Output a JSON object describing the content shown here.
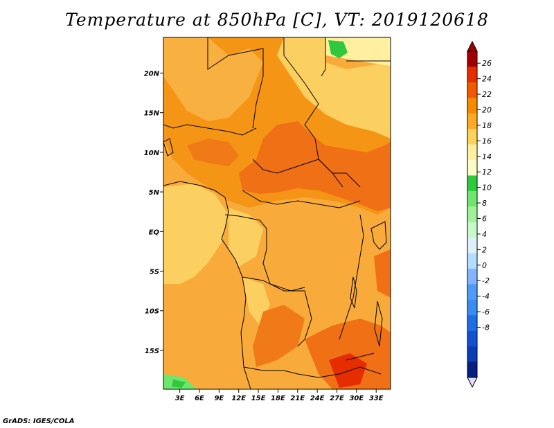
{
  "map": {
    "title": "Temperature at 850hPa [C], VT: 2019120618",
    "footer": "GrADS: IGES/COLA",
    "lat_ticks": [
      {
        "label": "20N",
        "lat": 20
      },
      {
        "label": "15N",
        "lat": 15
      },
      {
        "label": "10N",
        "lat": 10
      },
      {
        "label": "5N",
        "lat": 5
      },
      {
        "label": "EQ",
        "lat": 0
      },
      {
        "label": "5S",
        "lat": -5
      },
      {
        "label": "10S",
        "lat": -10
      },
      {
        "label": "15S",
        "lat": -15
      }
    ],
    "lon_ticks": [
      {
        "label": "3E",
        "lon": 3
      },
      {
        "label": "6E",
        "lon": 6
      },
      {
        "label": "9E",
        "lon": 9
      },
      {
        "label": "12E",
        "lon": 12
      },
      {
        "label": "15E",
        "lon": 15
      },
      {
        "label": "18E",
        "lon": 18
      },
      {
        "label": "21E",
        "lon": 21
      },
      {
        "label": "24E",
        "lon": 24
      },
      {
        "label": "27E",
        "lon": 27
      },
      {
        "label": "30E",
        "lon": 30
      },
      {
        "label": "33E",
        "lon": 33
      }
    ],
    "lon_range": [
      0.5,
      35.2
    ],
    "lat_range": [
      -19.9,
      24.5
    ]
  },
  "colorbar": {
    "labels": [
      "26",
      "24",
      "22",
      "20",
      "18",
      "16",
      "14",
      "12",
      "10",
      "8",
      "6",
      "4",
      "2",
      "0",
      "-2",
      "-4",
      "-6",
      "-8"
    ],
    "colors": [
      "#a00000",
      "#e62d00",
      "#f05a00",
      "#f58c00",
      "#faaa28",
      "#fcd25a",
      "#fff0a0",
      "#f8fcc8",
      "#30c83c",
      "#6ee66e",
      "#a0f09a",
      "#c8f8c8",
      "#ddf0f8",
      "#b4dcff",
      "#82b4ff",
      "#509bf5",
      "#3c8cf0",
      "#1e6ee6",
      "#1450d2",
      "#0a3cb4",
      "#061e7d"
    ],
    "end_colors": {
      "top": "#a00000",
      "bottom": "#e1dcff"
    }
  }
}
